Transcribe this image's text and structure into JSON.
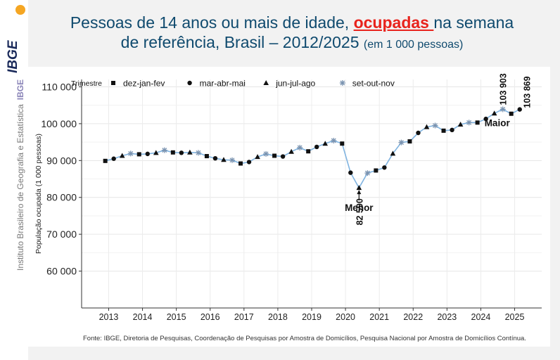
{
  "header": {
    "title_part1": "Pessoas de 14 anos ou mais de idade, ",
    "title_highlight": "ocupadas ",
    "title_part2": "na semana",
    "title_line2": "de referência,  Brasil – 2012/2025 ",
    "title_unit": "(em 1 000 pessoas)"
  },
  "sidebar": {
    "institute": "Instituto Brasileiro de Geografia e Estatística",
    "brand": "IBGE",
    "logo_text": "IBGE"
  },
  "source": "Fonte: IBGE, Diretoria de Pesquisas, Coordenação de Pesquisas por Amostra de Domicílios, Pesquisa Nacional por Amostra de Domicílios Contínua.",
  "colors": {
    "line": "#7fb3e0",
    "accent": "#e8231d",
    "title": "#0f4a6e",
    "star": "#7a93b0"
  },
  "chart_data": {
    "type": "line",
    "ylabel": "População ocupada (1 000 pessoas)",
    "ylim": [
      50000,
      112000
    ],
    "yticks": [
      60000,
      70000,
      80000,
      90000,
      100000,
      110000
    ],
    "ytick_labels": [
      "60 000",
      "70 000",
      "80 000",
      "90 000",
      "100 000",
      "110 000"
    ],
    "xticks": [
      2013,
      2014,
      2015,
      2016,
      2017,
      2018,
      2019,
      2020,
      2021,
      2022,
      2023,
      2024,
      2025
    ],
    "xlim": [
      2012.2,
      2025.8
    ],
    "grid": true,
    "legend": {
      "title": "Trimestre",
      "position": "top-left",
      "items": [
        {
          "label": "dez-jan-fev",
          "symbol": "square"
        },
        {
          "label": "mar-abr-mai",
          "symbol": "circle"
        },
        {
          "label": "jun-jul-ago",
          "symbol": "triangle"
        },
        {
          "label": "set-out-nov",
          "symbol": "star"
        }
      ]
    },
    "x": [
      2012.9,
      2013.15,
      2013.4,
      2013.65,
      2013.9,
      2014.15,
      2014.4,
      2014.65,
      2014.9,
      2015.15,
      2015.4,
      2015.65,
      2015.9,
      2016.15,
      2016.4,
      2016.65,
      2016.9,
      2017.15,
      2017.4,
      2017.65,
      2017.9,
      2018.15,
      2018.4,
      2018.65,
      2018.9,
      2019.15,
      2019.4,
      2019.65,
      2019.9,
      2020.15,
      2020.4,
      2020.65,
      2020.9,
      2021.15,
      2021.4,
      2021.65,
      2021.9,
      2022.15,
      2022.4,
      2022.65,
      2022.9,
      2023.15,
      2023.4,
      2023.65,
      2023.9,
      2024.15,
      2024.4,
      2024.65,
      2024.9,
      2025.15
    ],
    "y": [
      89900,
      90500,
      91300,
      91900,
      91700,
      91800,
      92100,
      92800,
      92200,
      92100,
      92200,
      92100,
      91200,
      90600,
      90200,
      90100,
      89200,
      89600,
      91000,
      91800,
      91300,
      91100,
      92400,
      93500,
      92500,
      93700,
      94600,
      95400,
      94600,
      86700,
      82590,
      86600,
      87300,
      88100,
      91900,
      94900,
      95200,
      97500,
      99100,
      99500,
      98100,
      98300,
      99800,
      100300,
      100300,
      101300,
      102800,
      103903,
      102700,
      103869
    ],
    "symbols": [
      "square",
      "circle",
      "triangle",
      "star",
      "square",
      "circle",
      "triangle",
      "star",
      "square",
      "circle",
      "triangle",
      "star",
      "square",
      "circle",
      "triangle",
      "star",
      "square",
      "circle",
      "triangle",
      "star",
      "square",
      "circle",
      "triangle",
      "star",
      "square",
      "circle",
      "triangle",
      "star",
      "square",
      "circle",
      "triangle",
      "star",
      "square",
      "circle",
      "triangle",
      "star",
      "square",
      "circle",
      "triangle",
      "star",
      "square",
      "circle",
      "triangle",
      "star",
      "square",
      "circle",
      "triangle",
      "star",
      "square",
      "circle"
    ],
    "annotations": {
      "min": {
        "label": "Menor",
        "value_label": "82 590",
        "index": 30
      },
      "max": {
        "label": "Maior",
        "value_label": "103 903",
        "index": 47
      },
      "last": {
        "value_label": "103 869",
        "index": 49
      }
    }
  }
}
